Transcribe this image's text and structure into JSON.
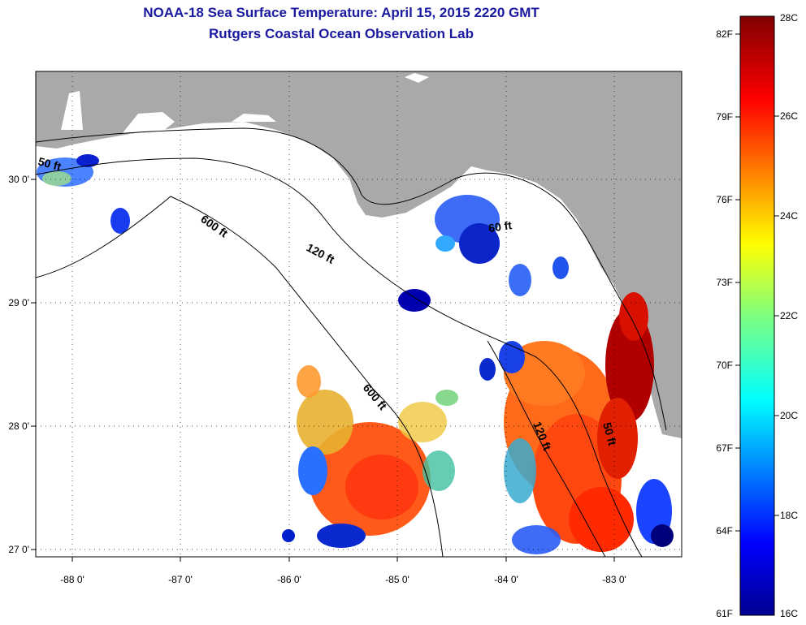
{
  "title": "NOAA-18 Sea Surface Temperature:  April 15, 2015 2220 GMT",
  "subtitle": "Rutgers Coastal Ocean Observation Lab",
  "colors": {
    "land": "#a9a9a9",
    "ocean_nodata": "#ffffff",
    "title": "#1a1aa0"
  },
  "map": {
    "lon_ticks": [
      "-88 0'",
      "-87 0'",
      "-86 0'",
      "-85 0'",
      "-84 0'",
      "-83 0'"
    ],
    "lat_ticks": [
      "30 0'",
      "29 0'",
      "28 0'",
      "27 0'"
    ],
    "contours": [
      "50 ft",
      "600 ft",
      "120 ft",
      "60 ft",
      "600 ft",
      "120 ft",
      "50 ft"
    ]
  },
  "colorbar": {
    "fahrenheit": [
      "82F",
      "79F",
      "76F",
      "73F",
      "70F",
      "67F",
      "64F",
      "61F"
    ],
    "celsius": [
      "28C",
      "26C",
      "24C",
      "22C",
      "20C",
      "18C",
      "16C"
    ],
    "range_c": [
      16,
      28
    ]
  }
}
